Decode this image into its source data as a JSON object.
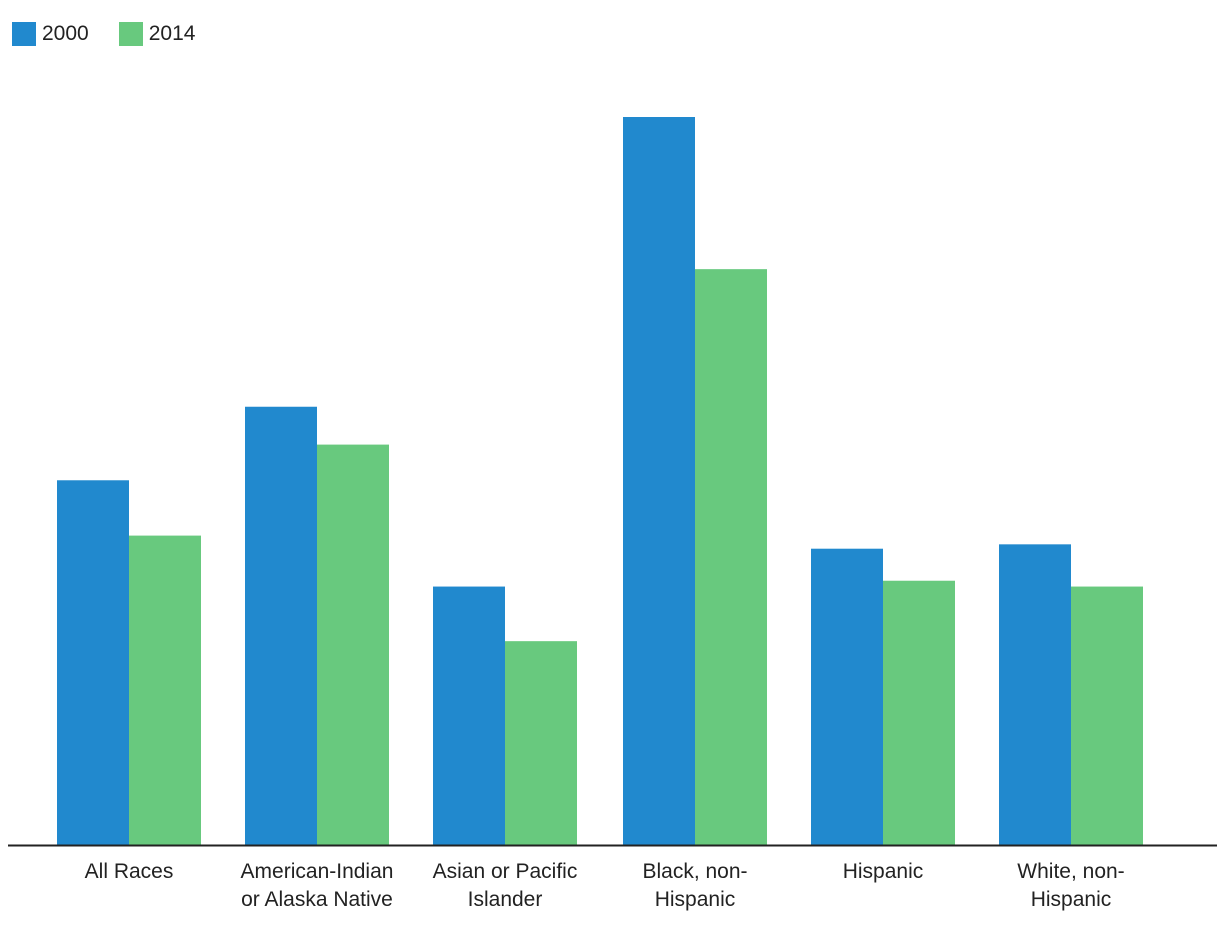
{
  "chart_data": {
    "type": "bar",
    "title": "",
    "xlabel": "",
    "ylabel": "",
    "ylim": [
      0,
      100
    ],
    "grid": false,
    "legend_position": "top-left",
    "categories": [
      [
        "All Races"
      ],
      [
        "American-Indian",
        "or Alaska Native"
      ],
      [
        "Asian or Pacific",
        "Islander"
      ],
      [
        "Black, non-",
        "Hispanic"
      ],
      [
        "Hispanic"
      ],
      [
        "White, non-",
        "Hispanic"
      ]
    ],
    "series": [
      {
        "name": "2000",
        "color": "#2189CE",
        "values": [
          50.1,
          60.2,
          35.5,
          100,
          40.7,
          41.3
        ]
      },
      {
        "name": "2014",
        "color": "#68C97E",
        "values": [
          42.5,
          55.0,
          28.0,
          79.1,
          36.3,
          35.5
        ]
      }
    ]
  }
}
